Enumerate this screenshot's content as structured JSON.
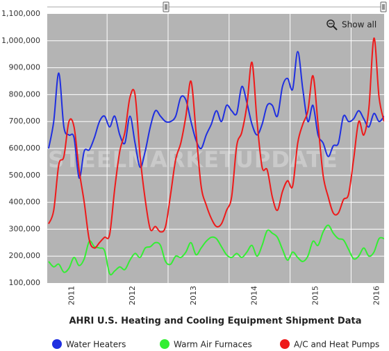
{
  "chart_data": {
    "type": "line",
    "title": "AHRI U.S. Heating and Cooling Equipment Shipment Data",
    "watermark": "STEELMARKETUPDATE",
    "show_all": "Show all",
    "categories": [
      null,
      null,
      null,
      null,
      "2011",
      null,
      null,
      null,
      null,
      null,
      null,
      null,
      null,
      null,
      null,
      null,
      "2012",
      null,
      null,
      null,
      null,
      null,
      null,
      null,
      null,
      null,
      null,
      null,
      "2013",
      null,
      null,
      null,
      null,
      null,
      null,
      null,
      null,
      null,
      null,
      null,
      "2014",
      null,
      null,
      null,
      null,
      null,
      null,
      null,
      null,
      null,
      null,
      null,
      "2015",
      null,
      null,
      null,
      null,
      null,
      null,
      null,
      null,
      null,
      null,
      null,
      "2016",
      null,
      null
    ],
    "series": [
      {
        "name": "Water Heaters",
        "color": "#1f2fe0",
        "values": [
          600000,
          700000,
          880000,
          680000,
          650000,
          640000,
          490000,
          590000,
          595000,
          640000,
          700000,
          720000,
          680000,
          720000,
          650000,
          620000,
          720000,
          620000,
          530000,
          590000,
          680000,
          740000,
          720000,
          700000,
          700000,
          720000,
          790000,
          780000,
          700000,
          630000,
          600000,
          650000,
          690000,
          740000,
          700000,
          760000,
          740000,
          730000,
          830000,
          770000,
          690000,
          650000,
          690000,
          760000,
          760000,
          720000,
          830000,
          860000,
          820000,
          960000,
          820000,
          700000,
          760000,
          650000,
          620000,
          570000,
          610000,
          620000,
          720000,
          700000,
          710000,
          740000,
          710000,
          680000,
          730000,
          700000,
          720000
        ]
      },
      {
        "name": "Warm Air Furnaces",
        "color": "#33ee33",
        "values": [
          180000,
          160000,
          170000,
          140000,
          155000,
          195000,
          165000,
          190000,
          255000,
          235000,
          230000,
          220000,
          135000,
          145000,
          160000,
          150000,
          185000,
          210000,
          195000,
          230000,
          235000,
          250000,
          240000,
          180000,
          170000,
          200000,
          195000,
          215000,
          250000,
          205000,
          230000,
          255000,
          270000,
          265000,
          235000,
          205000,
          195000,
          210000,
          195000,
          215000,
          240000,
          200000,
          240000,
          295000,
          285000,
          270000,
          225000,
          185000,
          215000,
          195000,
          180000,
          200000,
          255000,
          240000,
          290000,
          315000,
          285000,
          265000,
          260000,
          225000,
          190000,
          200000,
          230000,
          200000,
          215000,
          265000,
          265000
        ]
      },
      {
        "name": "A/C and Heat Pumps",
        "color": "#ee1a1a",
        "values": [
          320000,
          370000,
          540000,
          570000,
          700000,
          680000,
          520000,
          400000,
          260000,
          230000,
          250000,
          270000,
          280000,
          450000,
          590000,
          660000,
          790000,
          800000,
          570000,
          410000,
          300000,
          310000,
          290000,
          310000,
          430000,
          560000,
          620000,
          720000,
          850000,
          660000,
          460000,
          390000,
          340000,
          310000,
          320000,
          370000,
          420000,
          610000,
          660000,
          760000,
          920000,
          700000,
          530000,
          520000,
          420000,
          370000,
          440000,
          480000,
          460000,
          620000,
          690000,
          740000,
          870000,
          690000,
          500000,
          420000,
          360000,
          360000,
          410000,
          430000,
          560000,
          700000,
          650000,
          750000,
          1010000,
          790000,
          700000
        ]
      }
    ],
    "ylim": [
      100000,
      1100000
    ],
    "yticks": [
      {
        "value": 100000,
        "label": "100,000"
      },
      {
        "value": 200000,
        "label": "200,000"
      },
      {
        "value": 300000,
        "label": "300,000"
      },
      {
        "value": 400000,
        "label": "400,000"
      },
      {
        "value": 500000,
        "label": "500,000"
      },
      {
        "value": 600000,
        "label": "600,000"
      },
      {
        "value": 700000,
        "label": "700,000"
      },
      {
        "value": 800000,
        "label": "800,000"
      },
      {
        "value": 900000,
        "label": "900,000"
      },
      {
        "value": 1000000,
        "label": "1,000,000"
      },
      {
        "value": 1100000,
        "label": "1,100,000"
      }
    ],
    "grid": true,
    "legend": "bottom"
  }
}
